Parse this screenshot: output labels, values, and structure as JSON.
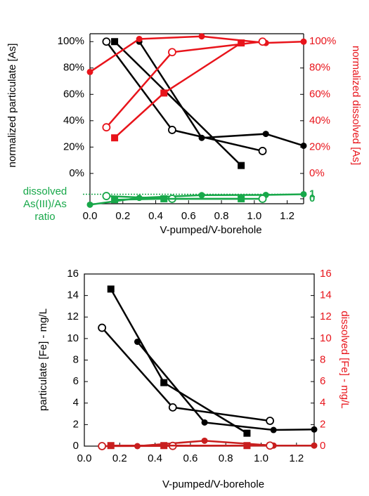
{
  "chart_data": [
    {
      "type": "line",
      "xlabel": "V-pumped/V-borehole",
      "ylabel": "normalized particulate [As]",
      "y2label": "normalized dissolved [As]",
      "y2color": "#e8141b",
      "xlim": [
        0,
        1.3
      ],
      "xticks": [
        {
          "value": 0,
          "label": "0.0"
        },
        0.2,
        0.4,
        0.6,
        0.8,
        {
          "value": 1,
          "label": "1.0"
        },
        1.2
      ],
      "ylim": [
        -23,
        106
      ],
      "yticks": [
        {
          "value": 0,
          "label": "0%"
        },
        {
          "value": 20,
          "label": "20%"
        },
        {
          "value": 40,
          "label": "40%"
        },
        {
          "value": 60,
          "label": "60%"
        },
        {
          "value": 80,
          "label": "80%"
        },
        {
          "value": 100,
          "label": "100%"
        }
      ],
      "y2lim": [
        -23,
        106
      ],
      "y2ticks": [
        {
          "value": 0,
          "label": "0%"
        },
        {
          "value": 20,
          "label": "20%"
        },
        {
          "value": 40,
          "label": "40%"
        },
        {
          "value": 60,
          "label": "60%"
        },
        {
          "value": 80,
          "label": "80%"
        },
        {
          "value": 100,
          "label": "100%"
        }
      ],
      "series": [
        {
          "color": "#000000",
          "marker": "circle-filled",
          "x": [
            0.3,
            0.68,
            1.07,
            1.3
          ],
          "values": [
            100,
            27,
            30,
            21
          ]
        },
        {
          "color": "#000000",
          "marker": "circle-open",
          "x": [
            0.1,
            0.5,
            1.05
          ],
          "values": [
            100,
            33,
            17
          ]
        },
        {
          "color": "#000000",
          "marker": "square",
          "x": [
            0.15,
            0.92
          ],
          "values": [
            100,
            6
          ]
        },
        {
          "color": "#e8141b",
          "marker": "circle-filled",
          "axis": "y2",
          "x": [
            0,
            0.3,
            0.68,
            1.07,
            1.3
          ],
          "values": [
            77,
            102,
            104,
            99,
            100
          ]
        },
        {
          "color": "#e8141b",
          "marker": "circle-open",
          "axis": "y2",
          "x": [
            0.1,
            0.5,
            1.05
          ],
          "values": [
            35,
            92,
            100
          ]
        },
        {
          "color": "#e8141b",
          "marker": "square",
          "axis": "y2",
          "x": [
            0.15,
            0.45,
            0.92
          ],
          "values": [
            27,
            61,
            99
          ]
        }
      ]
    },
    {
      "type": "line",
      "ylabel_lines": [
        "dissolved",
        "As(III)/As",
        "ratio"
      ],
      "y2color": "#18a84a",
      "xlim": [
        0,
        1.3
      ],
      "y2lim": [
        -1.4,
        2
      ],
      "y2ticks": [
        0,
        1
      ],
      "reference_y2": 1,
      "series": [
        {
          "color": "#18a84a",
          "marker": "circle-filled",
          "axis": "y2",
          "x": [
            0,
            0.3,
            0.68,
            1.07,
            1.3
          ],
          "values": [
            -1.3,
            0.2,
            0.8,
            0.85,
            1
          ]
        },
        {
          "color": "#18a84a",
          "marker": "circle-open",
          "axis": "y2",
          "x": [
            0.1,
            0.5,
            1.05
          ],
          "values": [
            0.6,
            0,
            0
          ]
        },
        {
          "color": "#18a84a",
          "marker": "square",
          "axis": "y2",
          "x": [
            0.15,
            0.45,
            0.92
          ],
          "values": [
            -0.2,
            0,
            0
          ]
        }
      ]
    },
    {
      "type": "line",
      "xlabel": "V-pumped/V-borehole",
      "ylabel": "particulate [Fe] - mg/L",
      "y2label": "dissolved [Fe] - mg/L",
      "y2color": "#e8141b",
      "frame": true,
      "xlim": [
        0,
        1.3
      ],
      "xticks": [
        {
          "value": 0,
          "label": "0.0"
        },
        0.2,
        0.4,
        0.6,
        0.8,
        {
          "value": 1,
          "label": "1.0"
        },
        1.2
      ],
      "ylim": [
        0,
        16
      ],
      "yticks": [
        0,
        2,
        4,
        6,
        8,
        10,
        12,
        14,
        16
      ],
      "y2lim": [
        0,
        16
      ],
      "y2ticks": [
        0,
        2,
        4,
        6,
        8,
        10,
        12,
        14,
        16
      ],
      "series": [
        {
          "color": "#000000",
          "marker": "square",
          "x": [
            0.15,
            0.45,
            0.92
          ],
          "values": [
            14.6,
            5.9,
            1.2
          ]
        },
        {
          "color": "#000000",
          "marker": "circle-open",
          "x": [
            0.1,
            0.5,
            1.05
          ],
          "values": [
            11,
            3.6,
            2.35
          ]
        },
        {
          "color": "#000000",
          "marker": "circle-filled",
          "x": [
            0.3,
            0.68,
            1.07,
            1.3
          ],
          "values": [
            9.7,
            2.2,
            1.5,
            1.55
          ]
        },
        {
          "color": "#c81e1e",
          "marker": "circle-filled",
          "axis": "y2",
          "x": [
            0.3,
            0.68,
            1.07,
            1.3
          ],
          "values": [
            0,
            0.5,
            0.05,
            0.05
          ]
        },
        {
          "color": "#c81e1e",
          "marker": "circle-open",
          "axis": "y2",
          "x": [
            0.1,
            0.5,
            1.05
          ],
          "values": [
            0,
            0.02,
            0.05
          ]
        },
        {
          "color": "#c81e1e",
          "marker": "square",
          "axis": "y2",
          "x": [
            0.15,
            0.45,
            0.92
          ],
          "values": [
            0.05,
            0.05,
            0.05
          ]
        }
      ]
    }
  ]
}
